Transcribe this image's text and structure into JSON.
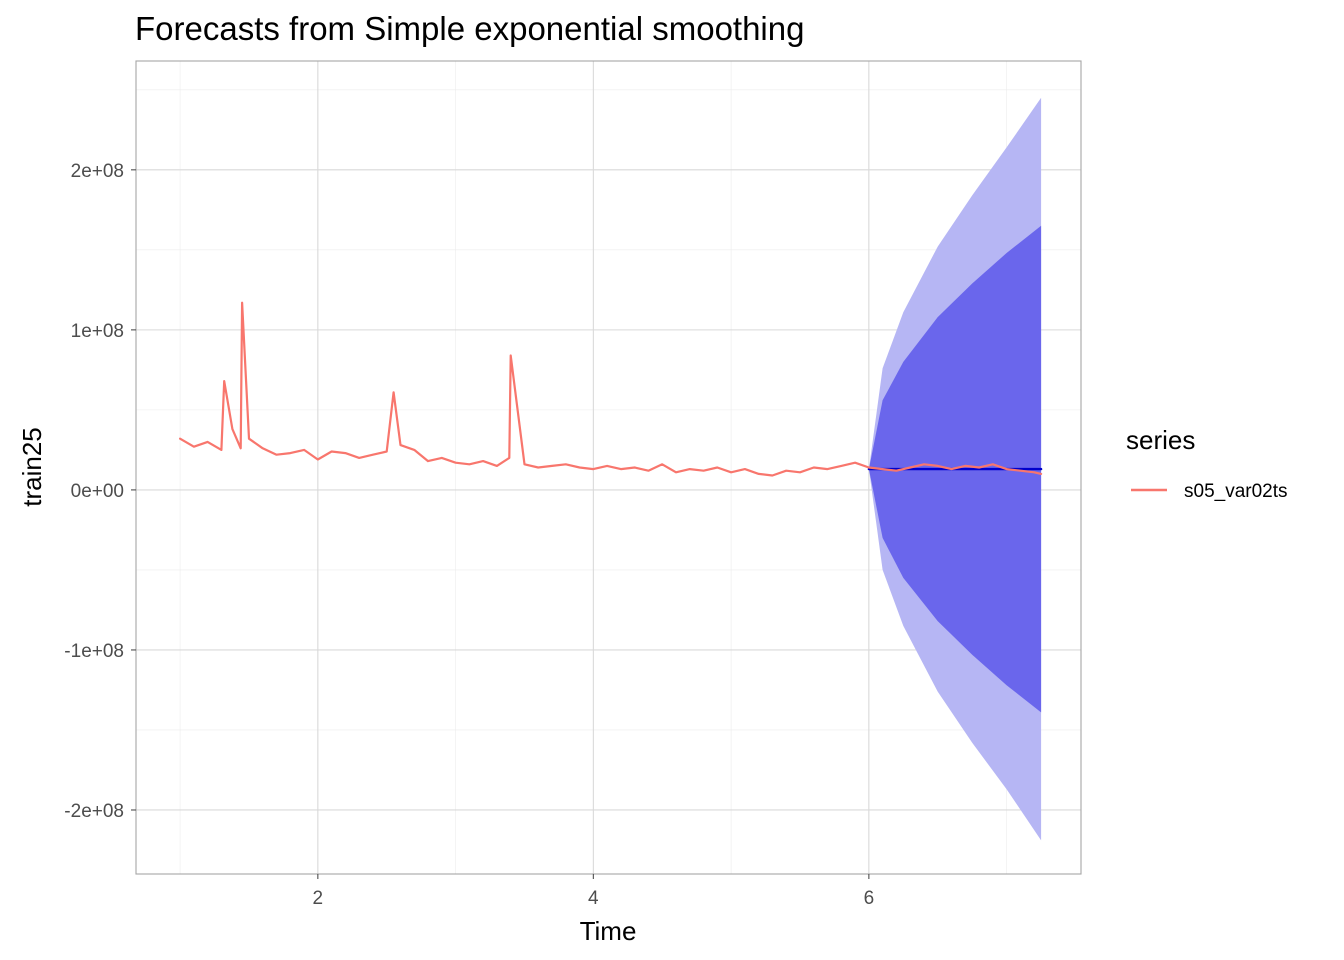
{
  "chart_data": {
    "type": "line",
    "title": "Forecasts from Simple exponential smoothing",
    "xlabel": "Time",
    "ylabel": "train25",
    "xlim": [
      0.68,
      7.54
    ],
    "ylim": [
      -240000000,
      268000000
    ],
    "x_ticks": [
      2,
      4,
      6
    ],
    "x_tick_labels": [
      "2",
      "4",
      "6"
    ],
    "y_ticks": [
      -200000000,
      -100000000,
      0,
      100000000,
      200000000
    ],
    "y_tick_labels": [
      "-2e+08",
      "-1e+08",
      "0e+00",
      "1e+08",
      "2e+08"
    ],
    "grid": true,
    "legend": {
      "title": "series",
      "position": "right",
      "entries": [
        {
          "name": "s05_var02ts",
          "color": "#f8766d"
        }
      ]
    },
    "series": [
      {
        "name": "s05_var02ts",
        "color": "#f8766d",
        "x": [
          1.0,
          1.1,
          1.2,
          1.3,
          1.32,
          1.38,
          1.44,
          1.45,
          1.5,
          1.6,
          1.7,
          1.8,
          1.9,
          2.0,
          2.1,
          2.2,
          2.3,
          2.4,
          2.5,
          2.55,
          2.6,
          2.7,
          2.8,
          2.9,
          3.0,
          3.1,
          3.2,
          3.3,
          3.39,
          3.4,
          3.5,
          3.6,
          3.7,
          3.8,
          3.9,
          4.0,
          4.1,
          4.2,
          4.3,
          4.4,
          4.5,
          4.6,
          4.7,
          4.8,
          4.9,
          5.0,
          5.1,
          5.2,
          5.3,
          5.4,
          5.5,
          5.6,
          5.7,
          5.8,
          5.9,
          6.0,
          6.1,
          6.2,
          6.3,
          6.4,
          6.5,
          6.6,
          6.7,
          6.8,
          6.9,
          7.0,
          7.1,
          7.2,
          7.25
        ],
        "y": [
          32000000,
          27000000,
          30000000,
          25000000,
          68000000,
          38000000,
          26000000,
          117000000,
          32000000,
          26000000,
          22000000,
          23000000,
          25000000,
          19000000,
          24000000,
          23000000,
          20000000,
          22000000,
          24000000,
          61000000,
          28000000,
          25000000,
          18000000,
          20000000,
          17000000,
          16000000,
          18000000,
          15000000,
          20000000,
          84000000,
          16000000,
          14000000,
          15000000,
          16000000,
          14000000,
          13000000,
          15000000,
          13000000,
          14000000,
          12000000,
          16000000,
          11000000,
          13000000,
          12000000,
          14000000,
          11000000,
          13000000,
          10000000,
          9000000,
          12000000,
          11000000,
          14000000,
          13000000,
          15000000,
          17000000,
          14000000,
          13000000,
          12000000,
          14000000,
          16000000,
          15000000,
          13000000,
          15000000,
          14000000,
          16000000,
          13000000,
          12000000,
          11000000,
          10000000
        ]
      },
      {
        "name": "forecast",
        "color": "#0000cc",
        "x": [
          6.0,
          7.25
        ],
        "y": [
          13000000,
          13000000
        ]
      }
    ],
    "intervals": [
      {
        "level": 95,
        "color": "#b6b6f4",
        "x": [
          6.0,
          6.1,
          6.25,
          6.5,
          6.75,
          7.0,
          7.25
        ],
        "lower": [
          13000000,
          -50000000,
          -85000000,
          -126000000,
          -158000000,
          -187000000,
          -219000000
        ],
        "upper": [
          13000000,
          76000000,
          111000000,
          152000000,
          184000000,
          214000000,
          245000000
        ]
      },
      {
        "level": 80,
        "color": "#6a66ec",
        "x": [
          6.0,
          6.1,
          6.25,
          6.5,
          6.75,
          7.0,
          7.25
        ],
        "lower": [
          13000000,
          -30000000,
          -55000000,
          -82000000,
          -103000000,
          -122000000,
          -139000000
        ],
        "upper": [
          13000000,
          56000000,
          80000000,
          108000000,
          129000000,
          148000000,
          165000000
        ]
      }
    ]
  }
}
